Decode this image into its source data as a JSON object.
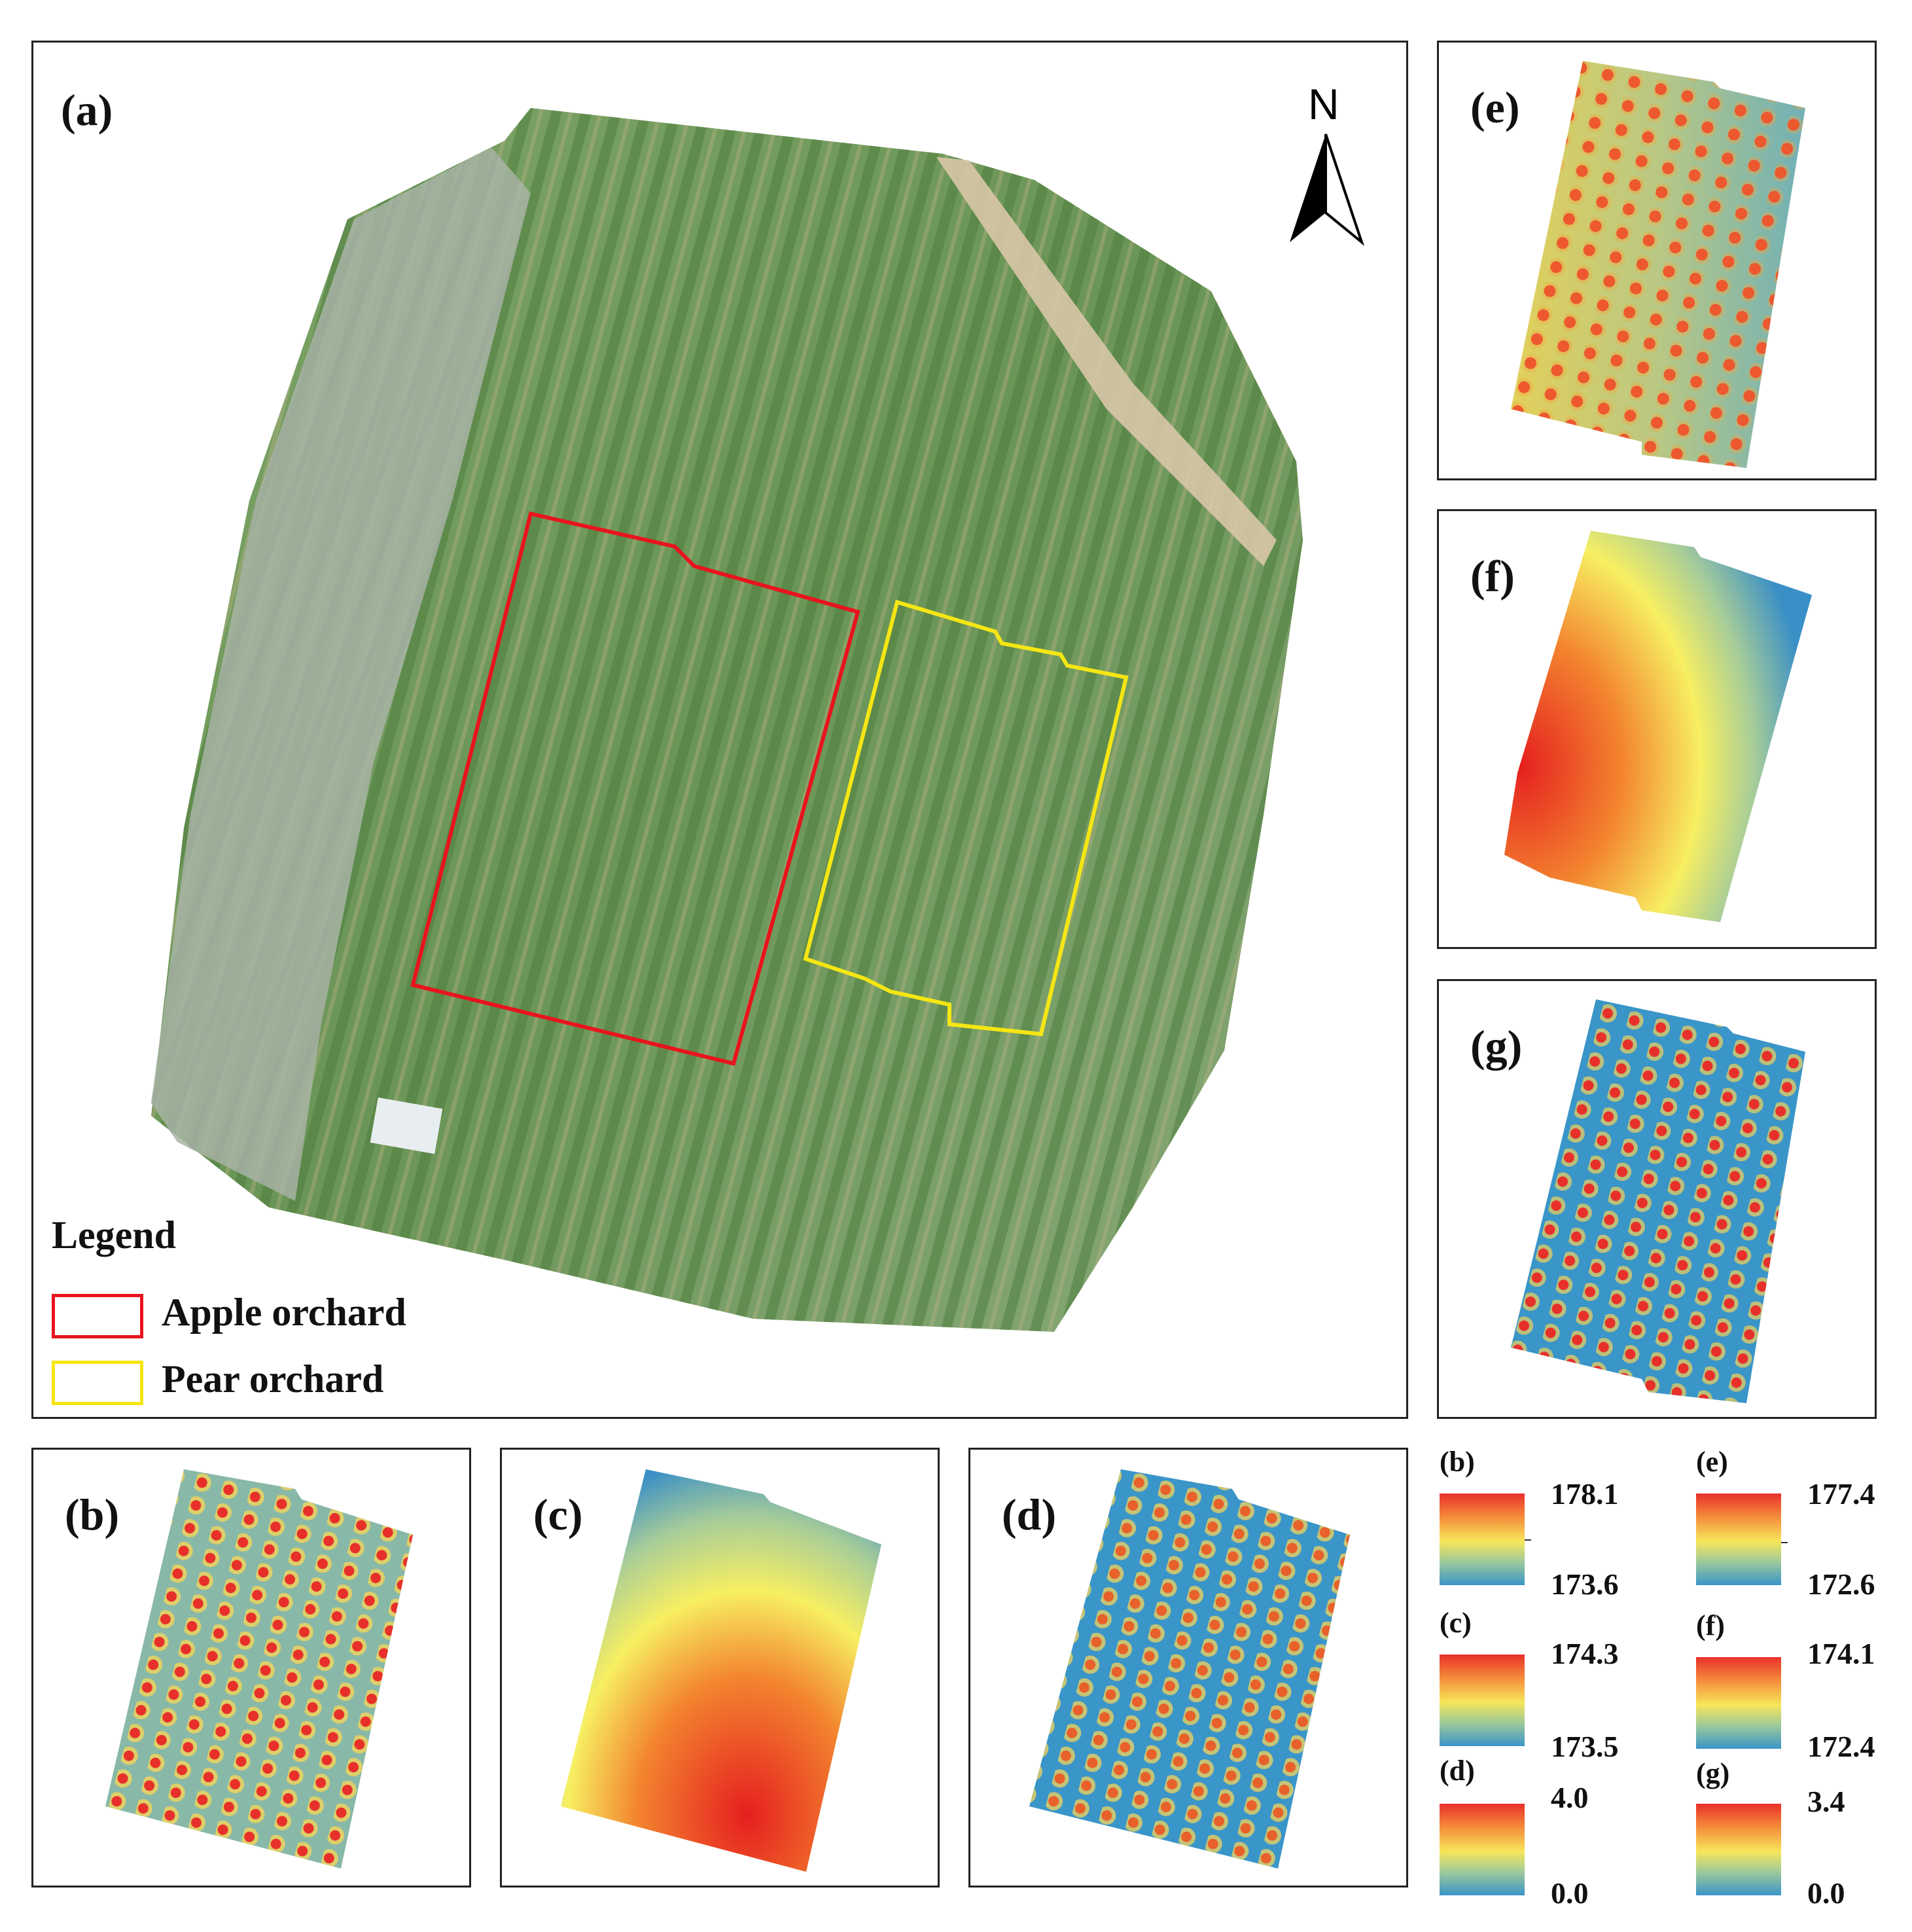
{
  "panels": {
    "a": "(a)",
    "b": "(b)",
    "c": "(c)",
    "d": "(d)",
    "e": "(e)",
    "f": "(f)",
    "g": "(g)"
  },
  "north_label": "N",
  "legend": {
    "title": "Legend",
    "items": [
      {
        "label": "Apple orchard",
        "color": "#e8141c"
      },
      {
        "label": "Pear orchard",
        "color": "#f5e614"
      }
    ]
  },
  "colorbars": [
    {
      "label": "(b)",
      "max": "178.1",
      "min": "173.6"
    },
    {
      "label": "(c)",
      "max": "174.3",
      "min": "173.5"
    },
    {
      "label": "(d)",
      "max": "4.0",
      "min": "0.0"
    },
    {
      "label": "(e)",
      "max": "177.4",
      "min": "172.6"
    },
    {
      "label": "(f)",
      "max": "174.1",
      "min": "172.4"
    },
    {
      "label": "(g)",
      "max": "3.4",
      "min": "0.0"
    }
  ],
  "colors": {
    "ramp_high": "#e8302a",
    "ramp_mid": "#f7e65a",
    "ramp_low": "#3a95c8",
    "orchard_green": "#6e9a5a"
  }
}
